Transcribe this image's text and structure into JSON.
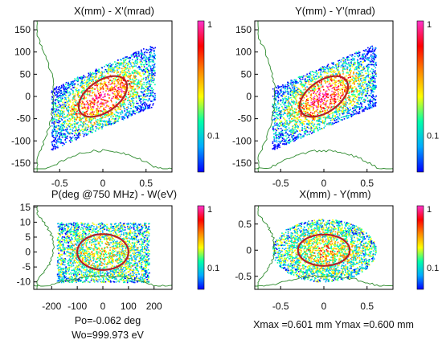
{
  "colors": {
    "background": "#ffffff",
    "frame": "#000000",
    "ellipse": "#b3202a",
    "profile": "#2e8b2e",
    "colorbar_stops": [
      "#0000ff",
      "#00aaff",
      "#00ffaa",
      "#ffff00",
      "#ff8800",
      "#ff0000",
      "#ff33cc"
    ]
  },
  "chart_data": [
    {
      "type": "scatter",
      "title": "X(mm) - X'(mrad)",
      "xlim": [
        -0.8,
        0.8
      ],
      "ylim": [
        -170,
        170
      ],
      "xticks": [
        -0.5,
        0,
        0.5
      ],
      "xtick_labels": [
        "-0.5",
        "0",
        "0.5"
      ],
      "yticks": [
        150,
        100,
        50,
        0,
        -50,
        -100,
        -150
      ],
      "ytick_labels": [
        "150",
        "100",
        "50",
        "0",
        "-50",
        "-100",
        "-150"
      ],
      "colorbar": {
        "labels": [
          "1",
          "0.1"
        ],
        "values": [
          1,
          0.1
        ],
        "scale": "log"
      },
      "distribution": {
        "shape": "parallelogram",
        "x_range": [
          -0.6,
          0.6
        ],
        "y_center_at_xmin": -50,
        "y_center_at_xmax": 50,
        "y_half_width": 70
      },
      "ellipse": {
        "center": [
          0,
          0
        ],
        "x_semi": 0.28,
        "y_semi": 40,
        "tilt": 0.35
      },
      "notes": []
    },
    {
      "type": "scatter",
      "title": "Y(mm) - Y'(mrad)",
      "xlim": [
        -0.8,
        0.8
      ],
      "ylim": [
        -170,
        170
      ],
      "xticks": [
        -0.5,
        0,
        0.5
      ],
      "xtick_labels": [
        "-0.5",
        "0",
        "0.5"
      ],
      "yticks": [
        150,
        100,
        50,
        0,
        -50,
        -100,
        -150
      ],
      "ytick_labels": [
        "150",
        "100",
        "50",
        "0",
        "-50",
        "-100",
        "-150"
      ],
      "colorbar": {
        "labels": [
          "1",
          "0.1"
        ],
        "values": [
          1,
          0.1
        ],
        "scale": "log"
      },
      "distribution": {
        "shape": "parallelogram",
        "x_range": [
          -0.6,
          0.6
        ],
        "y_center_at_xmin": -50,
        "y_center_at_xmax": 50,
        "y_half_width": 70
      },
      "ellipse": {
        "center": [
          0,
          0
        ],
        "x_semi": 0.28,
        "y_semi": 40,
        "tilt": 0.35
      },
      "notes": []
    },
    {
      "type": "scatter",
      "title": "P(deg @750 MHz) - W(eV)",
      "xlim": [
        -270,
        270
      ],
      "ylim": [
        -12.5,
        15.5
      ],
      "xticks": [
        -200,
        -100,
        0,
        100,
        200
      ],
      "xtick_labels": [
        "-200",
        "-100",
        "0",
        "100",
        "200"
      ],
      "yticks": [
        15,
        10,
        5,
        0,
        -5,
        -10
      ],
      "ytick_labels": [
        "15",
        "10",
        "5",
        "0",
        "-5",
        "-10"
      ],
      "colorbar": {
        "labels": [
          "1",
          "0.1"
        ],
        "values": [
          1,
          0.1
        ],
        "scale": "log"
      },
      "distribution": {
        "shape": "rectangle",
        "x_range": [
          -180,
          180
        ],
        "y_range": [
          -10,
          10
        ]
      },
      "ellipse": {
        "center": [
          0,
          0
        ],
        "x_semi": 100,
        "y_semi": 6,
        "tilt": 0
      },
      "notes": [
        "Po=-0.062 deg",
        "Wo=999.973 eV"
      ]
    },
    {
      "type": "scatter",
      "title": "X(mm) - Y(mm)",
      "xlim": [
        -0.8,
        0.8
      ],
      "ylim": [
        -0.75,
        0.85
      ],
      "xticks": [
        -0.5,
        0,
        0.5
      ],
      "xtick_labels": [
        "-0.5",
        "0",
        "0.5"
      ],
      "yticks": [
        0.5,
        0,
        -0.5
      ],
      "ytick_labels": [
        "0.5",
        "0",
        "-0.5"
      ],
      "colorbar": {
        "labels": [
          "1",
          "0.1"
        ],
        "values": [
          1,
          0.1
        ],
        "scale": "log"
      },
      "distribution": {
        "shape": "ellipse",
        "x_semi": 0.6,
        "y_semi": 0.6
      },
      "ellipse": {
        "center": [
          0,
          0
        ],
        "x_semi": 0.3,
        "y_semi": 0.3,
        "tilt": 0
      },
      "notes": [
        "Xmax =0.601 mm   Ymax =0.600 mm"
      ]
    }
  ]
}
